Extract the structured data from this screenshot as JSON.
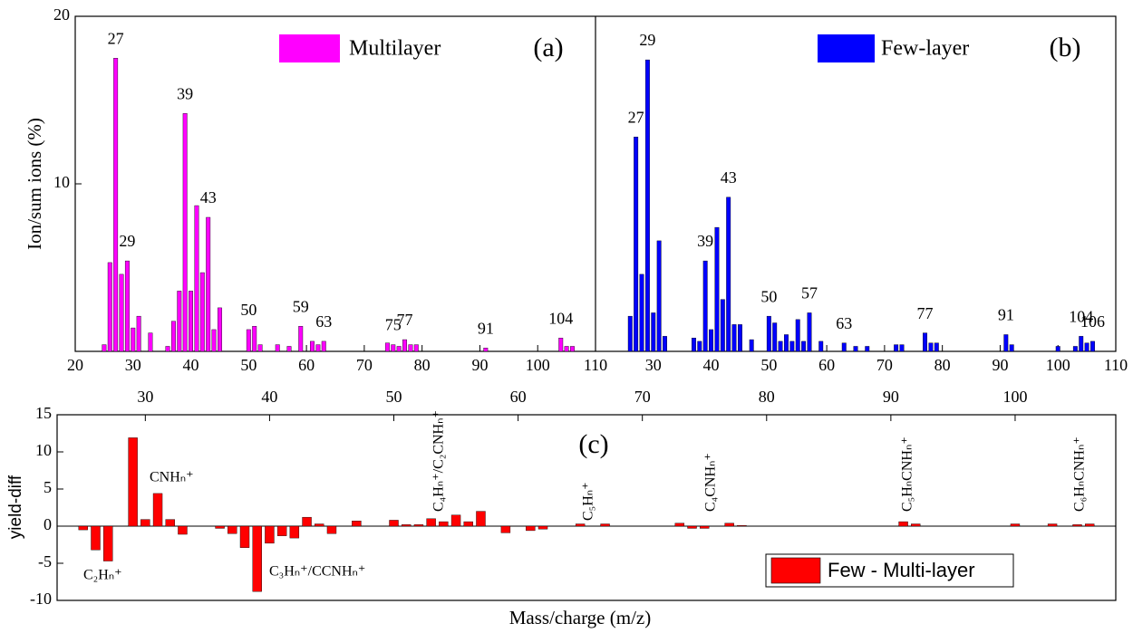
{
  "chart_data": [
    {
      "type": "bar",
      "panel_label": "(a)",
      "ylabel": "Ion/sum ions (%)",
      "xlim": [
        20,
        110
      ],
      "xticks": [
        20,
        30,
        40,
        50,
        60,
        70,
        80,
        90,
        100,
        110
      ],
      "ylim": [
        0,
        20
      ],
      "yticks": [
        10,
        20
      ],
      "series": [
        {
          "name": "Multilayer",
          "color": "#ff00ff",
          "x": [
            25,
            26,
            27,
            28,
            29,
            30,
            31,
            33,
            36,
            37,
            38,
            39,
            40,
            41,
            42,
            43,
            44,
            45,
            50,
            51,
            52,
            55,
            57,
            59,
            61,
            62,
            63,
            74,
            75,
            76,
            77,
            78,
            79,
            91,
            104,
            105,
            106
          ],
          "values": [
            0.4,
            5.3,
            17.5,
            4.6,
            5.4,
            1.4,
            2.1,
            1.1,
            0.3,
            1.8,
            3.6,
            14.2,
            3.6,
            8.7,
            4.7,
            8.0,
            1.3,
            2.6,
            1.3,
            1.5,
            0.4,
            0.4,
            0.3,
            1.5,
            0.6,
            0.4,
            0.6,
            0.5,
            0.4,
            0.3,
            0.7,
            0.4,
            0.4,
            0.2,
            0.8,
            0.3,
            0.3
          ]
        }
      ],
      "peak_labels": [
        27,
        29,
        39,
        43,
        50,
        59,
        63,
        75,
        77,
        91,
        104
      ]
    },
    {
      "type": "bar",
      "panel_label": "(b)",
      "xlim": [
        20,
        110
      ],
      "xticks": [
        30,
        40,
        50,
        60,
        70,
        80,
        90,
        100,
        110
      ],
      "ylim": [
        0,
        20
      ],
      "series": [
        {
          "name": "Few-layer",
          "color": "#0000ff",
          "x": [
            26,
            27,
            28,
            29,
            30,
            31,
            32,
            37,
            38,
            39,
            40,
            41,
            42,
            43,
            44,
            45,
            47,
            50,
            51,
            52,
            53,
            54,
            55,
            56,
            57,
            59,
            63,
            65,
            67,
            72,
            73,
            77,
            78,
            79,
            91,
            92,
            100,
            103,
            104,
            105,
            106
          ],
          "values": [
            2.1,
            12.8,
            4.6,
            17.4,
            2.3,
            6.6,
            0.9,
            0.8,
            0.6,
            5.4,
            1.3,
            7.4,
            3.1,
            9.2,
            1.6,
            1.6,
            0.7,
            2.1,
            1.7,
            0.6,
            1.0,
            0.6,
            1.9,
            0.6,
            2.3,
            0.6,
            0.5,
            0.3,
            0.3,
            0.4,
            0.4,
            1.1,
            0.5,
            0.5,
            1.0,
            0.4,
            0.3,
            0.3,
            0.9,
            0.5,
            0.6
          ]
        }
      ],
      "peak_labels": [
        27,
        29,
        39,
        43,
        50,
        57,
        63,
        77,
        91,
        104,
        106
      ]
    },
    {
      "type": "bar",
      "panel_label": "(c)",
      "ylabel": "yield-diff",
      "xlabel": "Mass/charge (m/z)",
      "xlim": [
        22.9,
        108.1
      ],
      "xticks": [
        30,
        40,
        50,
        60,
        70,
        80,
        90,
        100
      ],
      "ylim": [
        -10,
        15
      ],
      "yticks": [
        -10,
        -5,
        0,
        5,
        10,
        15
      ],
      "series": [
        {
          "name": "Few - Multi-layer",
          "color": "#ff0000",
          "x": [
            25,
            26,
            27,
            29,
            30,
            31,
            32,
            33,
            36,
            37,
            38,
            39,
            40,
            41,
            42,
            43,
            44,
            45,
            47,
            50,
            51,
            52,
            53,
            54,
            55,
            56,
            57,
            59,
            61,
            62,
            65,
            67,
            73,
            74,
            75,
            77,
            78,
            91,
            92,
            100,
            103,
            105,
            106
          ],
          "values": [
            -0.5,
            -3.2,
            -4.7,
            11.9,
            0.9,
            4.4,
            0.9,
            -1.1,
            -0.3,
            -1.0,
            -2.9,
            -8.8,
            -2.3,
            -1.3,
            -1.6,
            1.2,
            0.3,
            -1.0,
            0.7,
            0.8,
            0.2,
            0.2,
            1.0,
            0.6,
            1.5,
            0.6,
            2.0,
            -0.9,
            -0.6,
            -0.4,
            0.3,
            0.3,
            0.4,
            -0.3,
            -0.3,
            0.4,
            0.1,
            0.6,
            0.3,
            0.3,
            0.3,
            0.2,
            0.3
          ]
        }
      ],
      "annotations": [
        "C₂Hₙ⁺",
        "CNHₙ⁺",
        "C₃Hₙ⁺/CCNHₙ⁺",
        "C₄Hₙ⁺/C₂CNHₙ⁺",
        "C₅Hₙ⁺",
        "C₄CNHₙ⁺",
        "C₅HₙCNHₙ⁺",
        "C₆HₙCNHₙ⁺"
      ]
    }
  ]
}
